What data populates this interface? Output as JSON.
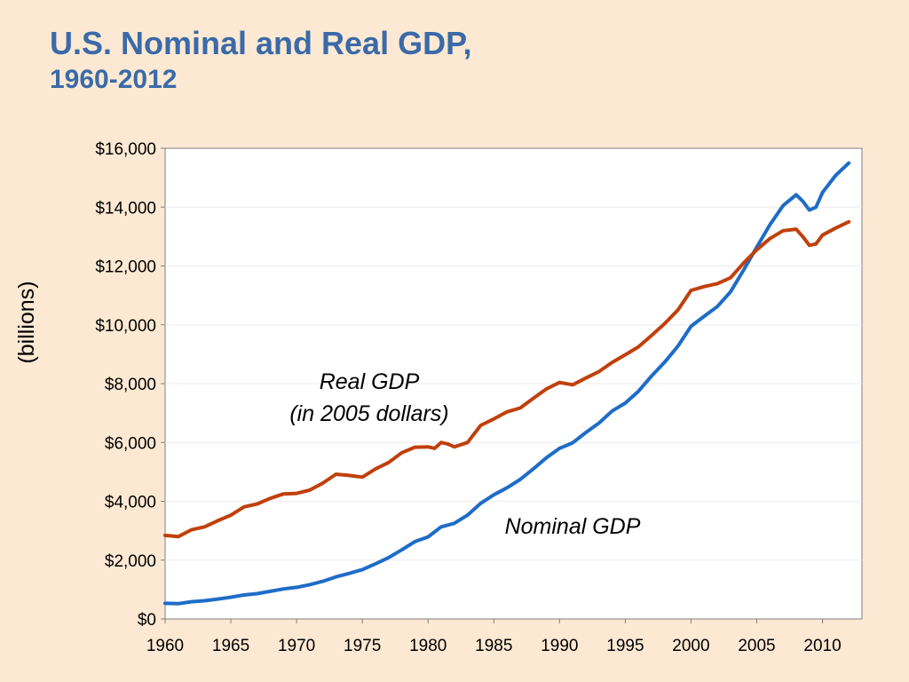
{
  "slide": {
    "title_line1": "U.S. Nominal and Real GDP,",
    "title_line2": "1960-2012"
  },
  "colors": {
    "background": "#fde9d3",
    "title": "#3a6aa8",
    "nominal": "#1e6cc8",
    "real": "#c0400c"
  },
  "chart_data": {
    "type": "line",
    "title": "U.S. Nominal and Real GDP, 1960-2012",
    "xlabel": "",
    "ylabel": "(billions)",
    "xlim": [
      1960,
      2013
    ],
    "ylim": [
      0,
      16000
    ],
    "x_ticks": [
      1960,
      1965,
      1970,
      1975,
      1980,
      1985,
      1990,
      1995,
      2000,
      2005,
      2010
    ],
    "x_tick_labels": [
      "1960",
      "1965",
      "1970",
      "1975",
      "1980",
      "1985",
      "1990",
      "1995",
      "2000",
      "2005",
      "2010"
    ],
    "y_ticks": [
      0,
      2000,
      4000,
      6000,
      8000,
      10000,
      12000,
      14000,
      16000
    ],
    "y_tick_labels": [
      "$0",
      "$2,000",
      "$4,000",
      "$6,000",
      "$8,000",
      "$10,000",
      "$12,000",
      "$14,000",
      "$16,000"
    ],
    "grid": true,
    "legend": "none",
    "annotations": [
      {
        "text": "Real GDP",
        "series": "real"
      },
      {
        "text": "(in 2005 dollars)",
        "series": "real"
      },
      {
        "text": "Nominal GDP",
        "series": "nominal"
      }
    ],
    "series": [
      {
        "key": "nominal",
        "x": [
          1960,
          1961,
          1962,
          1963,
          1964,
          1965,
          1966,
          1967,
          1968,
          1969,
          1970,
          1971,
          1972,
          1973,
          1974,
          1975,
          1976,
          1977,
          1978,
          1979,
          1980,
          1981,
          1982,
          1983,
          1984,
          1985,
          1986,
          1987,
          1988,
          1989,
          1990,
          1991,
          1992,
          1993,
          1994,
          1995,
          1996,
          1997,
          1998,
          1999,
          2000,
          2001,
          2002,
          2003,
          2004,
          2005,
          2006,
          2007,
          2008,
          2008.5,
          2009,
          2009.5,
          2010,
          2011,
          2012
        ],
        "values": [
          530,
          520,
          585,
          620,
          675,
          740,
          815,
          860,
          940,
          1020,
          1075,
          1165,
          1280,
          1430,
          1550,
          1680,
          1875,
          2085,
          2350,
          2630,
          2790,
          3130,
          3250,
          3530,
          3930,
          4220,
          4460,
          4740,
          5100,
          5480,
          5800,
          5990,
          6340,
          6660,
          7070,
          7340,
          7740,
          8260,
          8730,
          9270,
          9950,
          10290,
          10620,
          11120,
          11860,
          12640,
          13400,
          14050,
          14420,
          14200,
          13900,
          14000,
          14500,
          15080,
          15500
        ]
      },
      {
        "key": "real",
        "x": [
          1960,
          1961,
          1962,
          1963,
          1964,
          1965,
          1966,
          1967,
          1968,
          1969,
          1970,
          1971,
          1972,
          1973,
          1974,
          1975,
          1976,
          1977,
          1978,
          1979,
          1980,
          1980.5,
          1981,
          1981.5,
          1982,
          1983,
          1984,
          1985,
          1986,
          1987,
          1988,
          1989,
          1990,
          1991,
          1992,
          1993,
          1994,
          1995,
          1996,
          1997,
          1998,
          1999,
          2000,
          2001,
          2002,
          2003,
          2004,
          2005,
          2006,
          2007,
          2008,
          2008.5,
          2009,
          2009.5,
          2010,
          2011,
          2012
        ],
        "values": [
          2840,
          2800,
          3030,
          3130,
          3340,
          3530,
          3810,
          3910,
          4100,
          4250,
          4270,
          4380,
          4620,
          4920,
          4880,
          4820,
          5100,
          5320,
          5650,
          5840,
          5850,
          5800,
          6000,
          5950,
          5850,
          6000,
          6580,
          6800,
          7040,
          7170,
          7500,
          7820,
          8040,
          7960,
          8190,
          8410,
          8720,
          8980,
          9250,
          9640,
          10040,
          10500,
          11170,
          11300,
          11400,
          11600,
          12100,
          12550,
          12930,
          13200,
          13250,
          13000,
          12700,
          12750,
          13050,
          13290,
          13500
        ]
      }
    ]
  }
}
